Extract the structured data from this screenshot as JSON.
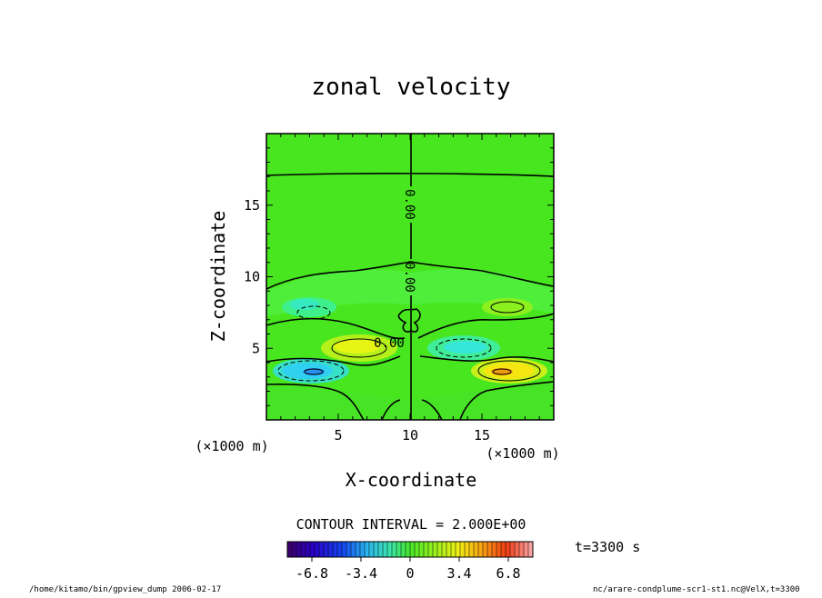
{
  "chart_data": {
    "type": "heatmap",
    "title": "zonal velocity",
    "xlabel": "X-coordinate",
    "ylabel": "Z-coordinate",
    "x_unit": "(×1000 m)",
    "y_unit": "(×1000 m)",
    "xlim": [
      0,
      20
    ],
    "ylim": [
      0,
      20
    ],
    "x_ticks": [
      5,
      10,
      15
    ],
    "y_ticks": [
      5,
      10,
      15
    ],
    "contour_interval_label": "CONTOUR INTERVAL = 2.000E+00",
    "contour_labels": [
      "0.00",
      "0.00",
      "0.00"
    ],
    "colorbar": {
      "range": [
        -8.5,
        8.5
      ],
      "tick_values": [
        -6.8,
        -3.4,
        0,
        3.4,
        6.8
      ],
      "tick_labels": [
        "-6.8",
        "-3.4",
        "0",
        "3.4",
        "6.8"
      ]
    },
    "features": [
      {
        "label": "negative core",
        "x": 3.2,
        "z": 3.3,
        "value": -6.0
      },
      {
        "label": "positive core",
        "x": 16.5,
        "z": 3.3,
        "value": 6.0
      },
      {
        "label": "positive lobe",
        "x": 6.5,
        "z": 5.0,
        "value": 4.0
      },
      {
        "label": "negative lobe",
        "x": 13.5,
        "z": 5.0,
        "value": -3.0
      },
      {
        "label": "weak negative",
        "x": 3.5,
        "z": 7.5,
        "value": -2.0
      },
      {
        "label": "weak positive",
        "x": 16.5,
        "z": 7.5,
        "value": 2.0
      }
    ]
  },
  "annotations": {
    "time": "t=3300 s",
    "footer_left": "/home/kitamo/bin/gpview_dump  2006-02-17",
    "footer_right": "nc/arare-condplume-scr1-st1.nc@VelX,t=3300"
  }
}
